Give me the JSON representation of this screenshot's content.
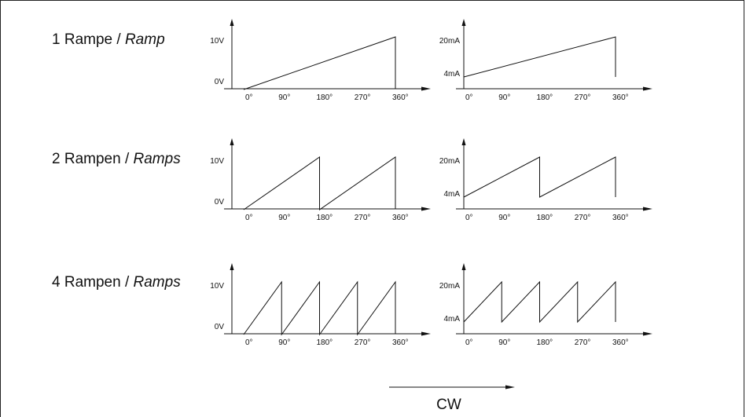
{
  "rows": [
    {
      "label_de": "1 Rampe",
      "sep": " / ",
      "label_en": "Ramp",
      "ramps": 1
    },
    {
      "label_de": "2 Rampen",
      "sep": " / ",
      "label_en": "Ramps",
      "ramps": 2
    },
    {
      "label_de": "4 Rampen",
      "sep": " / ",
      "label_en": "Ramps",
      "ramps": 4
    }
  ],
  "voltage_axis": {
    "min_label": "0V",
    "max_label": "10V"
  },
  "current_axis": {
    "min_label": "4mA",
    "max_label": "20mA"
  },
  "angle_ticks": [
    "0°",
    "90°",
    "180°",
    "270°",
    "360°"
  ],
  "direction_label": "CW",
  "colors": {
    "line": "#111111",
    "background": "#ffffff"
  }
}
